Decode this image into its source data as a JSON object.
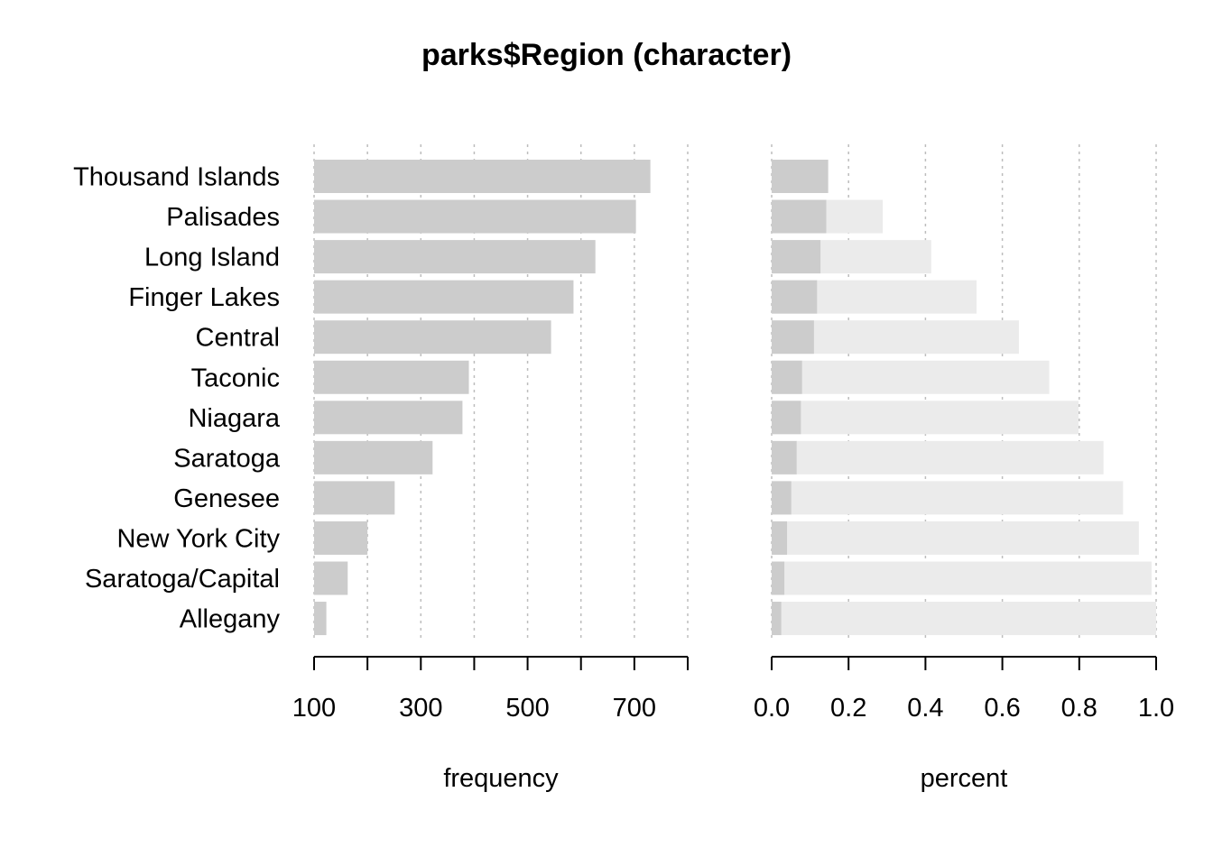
{
  "chart_data": {
    "type": "bar",
    "title": "parks$Region (character)",
    "categories": [
      "Thousand Islands",
      "Palisades",
      "Long Island",
      "Finger Lakes",
      "Central",
      "Taconic",
      "Niagara",
      "Saratoga",
      "Genesee",
      "New York City",
      "Saratoga/Capital",
      "Allegany"
    ],
    "panels": [
      {
        "xlabel": "frequency",
        "xlim": [
          100,
          800
        ],
        "ticks": [
          100,
          200,
          300,
          400,
          500,
          600,
          700,
          800
        ],
        "tick_labels": [
          "100",
          "300",
          "500",
          "700"
        ],
        "tick_label_values": [
          100,
          300,
          500,
          700
        ],
        "series": [
          {
            "values": [
              730,
              703,
              627,
              586,
              544,
              390,
              378,
              322,
              251,
              200,
              163,
              123
            ]
          }
        ]
      },
      {
        "xlabel": "percent",
        "xlim": [
          0,
          1
        ],
        "ticks": [
          0,
          0.2,
          0.4,
          0.6,
          0.8,
          1.0
        ],
        "tick_labels": [
          "0.0",
          "0.2",
          "0.4",
          "0.6",
          "0.8",
          "1.0"
        ],
        "tick_label_values": [
          0,
          0.2,
          0.4,
          0.6,
          0.8,
          1.0
        ],
        "series": [
          {
            "values": [
              0.147,
              0.142,
              0.127,
              0.118,
              0.11,
              0.079,
              0.076,
              0.065,
              0.051,
              0.04,
              0.033,
              0.025
            ]
          },
          {
            "values": [
              0.147,
              0.289,
              0.415,
              0.533,
              0.643,
              0.722,
              0.798,
              0.863,
              0.914,
              0.955,
              0.988,
              1.0
            ]
          }
        ]
      }
    ],
    "colors": {
      "bar": "#cccccc",
      "cumulative": "#ebebeb"
    },
    "grid": true
  }
}
